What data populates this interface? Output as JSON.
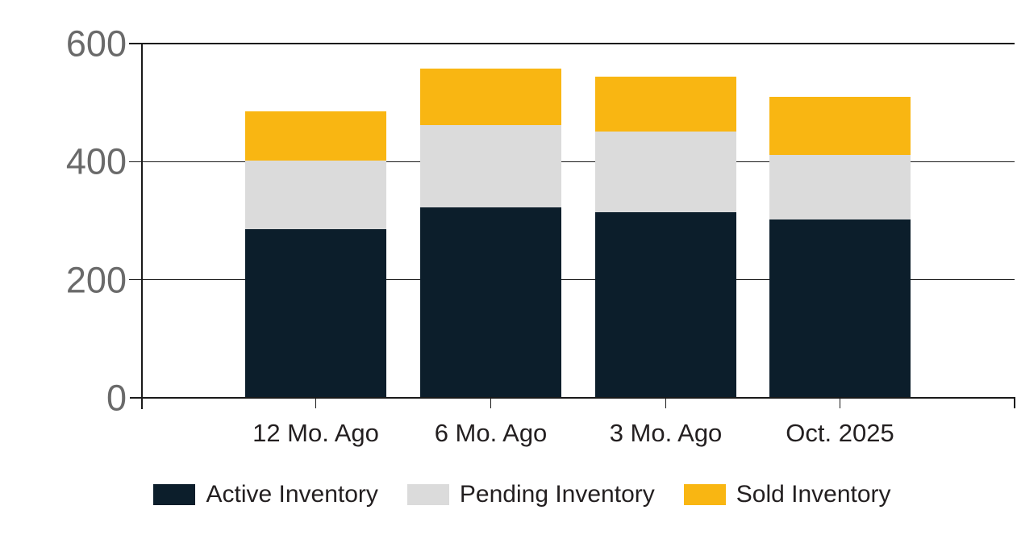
{
  "chart_data": {
    "type": "bar",
    "stacked": true,
    "title": "",
    "xlabel": "",
    "ylabel": "",
    "categories": [
      "12 Mo. Ago",
      "6 Mo. Ago",
      "3 Mo. Ago",
      "Oct. 2025"
    ],
    "series": [
      {
        "name": "Active Inventory",
        "color": "#0c1e2b",
        "values": [
          285,
          323,
          315,
          302
        ]
      },
      {
        "name": "Pending Inventory",
        "color": "#dbdbdb",
        "values": [
          117,
          139,
          136,
          109
        ]
      },
      {
        "name": "Sold Inventory",
        "color": "#f9b612",
        "values": [
          83,
          96,
          93,
          99
        ]
      }
    ],
    "stack_totals": [
      485,
      558,
      544,
      510
    ],
    "ylim": [
      0,
      600
    ],
    "yticks": [
      0,
      200,
      400,
      600
    ],
    "ytick_labels": [
      "0",
      "200",
      "400",
      "600"
    ],
    "grid": "horizontal",
    "legend_position": "bottom",
    "colors": {
      "axis": "#1a1a1a",
      "ytick_label_text": "#6a6a6a",
      "xtick_label_text": "#231f20",
      "background": "#ffffff"
    }
  }
}
